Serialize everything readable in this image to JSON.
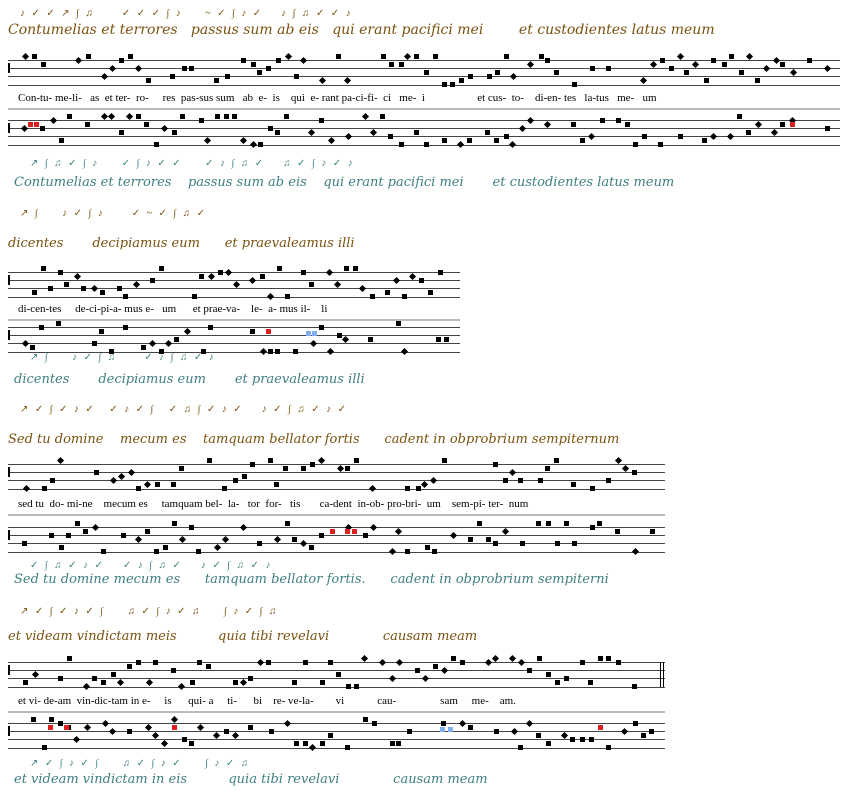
{
  "systems": [
    {
      "ms_top": "Contumelias et terrores   passus sum ab eis   qui erant pacifici mei        et custodientes latus meum",
      "neumes_top": "♪ ✓ ✓ ↗ ∫ ♫      ✓ ✓ ✓ ∫ ♪     ~ ✓ ∫ ♪ ✓    ♪ ∫ ♫ ✓ ✓ ♪",
      "lyrics": "Con-tu- me-li-   as  et ter-  ro-     res  pas-sus sum   ab  e-  is    qui  e- rant pa-ci-fi-  ci   me-  i                   et cus-  to-    di-en- tes   la-tus   me-   um",
      "ms_bottom": "Contumelias et terrores    passus sum ab eis    qui erant pacifici mei       et custodientes latus meum",
      "neumes_bottom": "↗ ∫ ♫ ✓ ∫ ♪     ✓ ∫ ♪ ✓ ✓     ✓ ♪ ∫ ♫ ✓    ♫ ✓ ∫ ♪ ✓ ♪"
    },
    {
      "ms_top": "dicentes       decipiamus eum      et praevaleamus illi",
      "neumes_top": "↗ ∫     ♪ ✓ ∫ ♪      ✓ ~ ✓ ∫ ♫ ✓",
      "lyrics": "di-cen-tes     de-ci-pi-a- mus e-   um      et prae-va-    le-  a- mus il-    li",
      "ms_bottom": "dicentes       decipiamus eum       et praevaleamus illi",
      "neumes_bottom": "↗ ∫     ♪ ✓ ∫ ♫      ✓ ♪ ∫ ♫ ✓ ♪"
    },
    {
      "ms_top": "Sed tu domine    mecum es    tamquam bellator fortis      cadent in obprobrium sempiternum",
      "neumes_top": "↗ ✓ ∫ ✓ ♪ ✓   ✓ ♪ ✓ ∫   ✓ ♫ ∫ ✓ ♪ ✓    ♪ ✓ ∫ ♫ ✓ ♪ ✓",
      "lyrics": "sed tu  do- mi-ne    mecum es     tamquam bel-  la-   tor  for-   tis       ca-dent  in-ob- pro-bri-  um    sem-pi- ter-  num",
      "ms_bottom": "Sed tu domine mecum es      tamquam bellator fortis.      cadent in obprobrium sempiterni",
      "neumes_bottom": "✓ ∫ ♫ ✓ ♪ ✓    ✓ ♪ ∫ ♫ ✓    ♪ ✓ ∫ ♫ ✓ ♪"
    },
    {
      "ms_top": "et videam vindictam meis          quia tibi revelavi             causam meam",
      "neumes_top": "↗ ✓ ∫ ✓ ♪ ✓ ∫     ♫ ✓ ∫ ♪ ✓ ♫     ∫ ♪ ✓ ∫ ♫",
      "lyrics": "et vi- de-am  vin-dic-tam in e-     is      qui- a     ti-      bi    re- ve-la-        vi            cau-                sam     me-    am.",
      "ms_bottom": "et videam vindictam in eis          quia tibi revelavi             causam meam",
      "neumes_bottom": "↗ ✓ ∫ ♪ ✓ ∫     ♫ ✓ ∫ ♪ ✓     ∫ ♪ ✓ ♫"
    }
  ],
  "colors": {
    "manuscript_top": "#7a5210",
    "manuscript_bottom": "#3f7f82",
    "variant_red": "#e02020",
    "variant_blue": "#80aef0"
  }
}
